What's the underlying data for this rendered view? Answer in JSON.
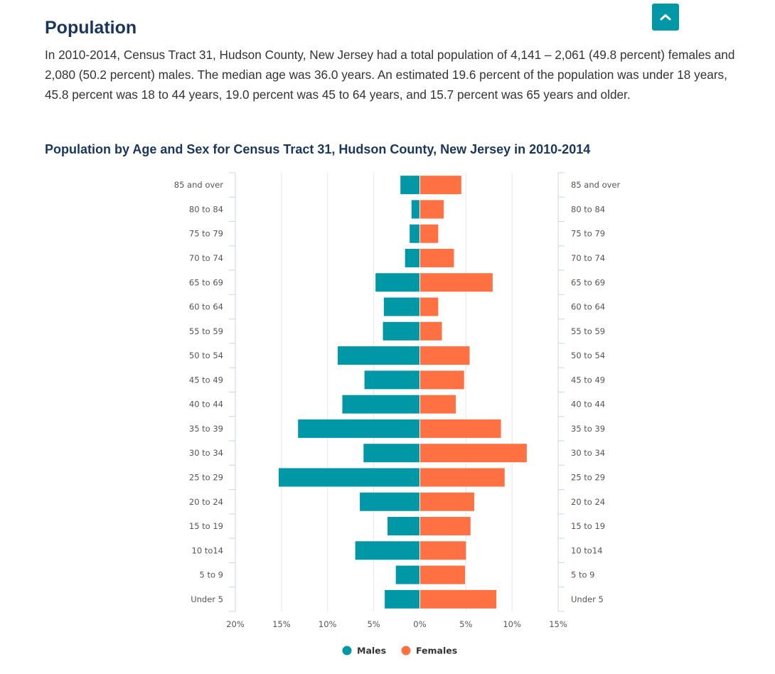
{
  "scroll_top": {
    "icon": "chevron-up-icon"
  },
  "section": {
    "title": "Population",
    "paragraph": "In 2010-2014, Census Tract 31, Hudson County, New Jersey had a total population of 4,141 – 2,061 (49.8 percent) females and 2,080 (50.2 percent) males. The median age was 36.0 years. An estimated 19.6 percent of the population was under 18 years, 45.8 percent was 18 to 44 years, 19.0 percent was 45 to 64 years, and 15.7 percent was 65 years and older."
  },
  "chart_data": {
    "type": "bar",
    "title": "Population by Age and Sex for Census Tract 31, Hudson County, New Jersey in 2010-2014",
    "categories": [
      "85 and over",
      "80 to 84",
      "75 to 79",
      "70 to 74",
      "65 to 69",
      "60 to 64",
      "55 to 59",
      "50 to 54",
      "45 to 49",
      "40 to 44",
      "35 to 39",
      "30 to 34",
      "25 to 29",
      "20 to 24",
      "15 to 19",
      "10 to14",
      "5 to 9",
      "Under 5"
    ],
    "series": [
      {
        "name": "Males",
        "color": "#0097a7",
        "values": [
          2.1,
          0.9,
          1.1,
          1.6,
          4.8,
          3.9,
          4.0,
          8.9,
          6.0,
          8.4,
          13.2,
          6.1,
          15.3,
          6.5,
          3.5,
          7.0,
          2.6,
          3.8
        ]
      },
      {
        "name": "Females",
        "color": "#ff7043",
        "values": [
          4.5,
          2.6,
          2.0,
          3.7,
          7.9,
          2.0,
          2.4,
          5.4,
          4.8,
          3.9,
          8.8,
          11.6,
          9.2,
          5.9,
          5.5,
          5.0,
          4.9,
          8.3
        ]
      }
    ],
    "xticks": [
      "20%",
      "15%",
      "10%",
      "5%",
      "0%",
      "5%",
      "10%",
      "15%"
    ],
    "xlim": [
      -20,
      15
    ],
    "xlabel": "",
    "ylabel": "",
    "grid": true,
    "legend": "bottom"
  }
}
